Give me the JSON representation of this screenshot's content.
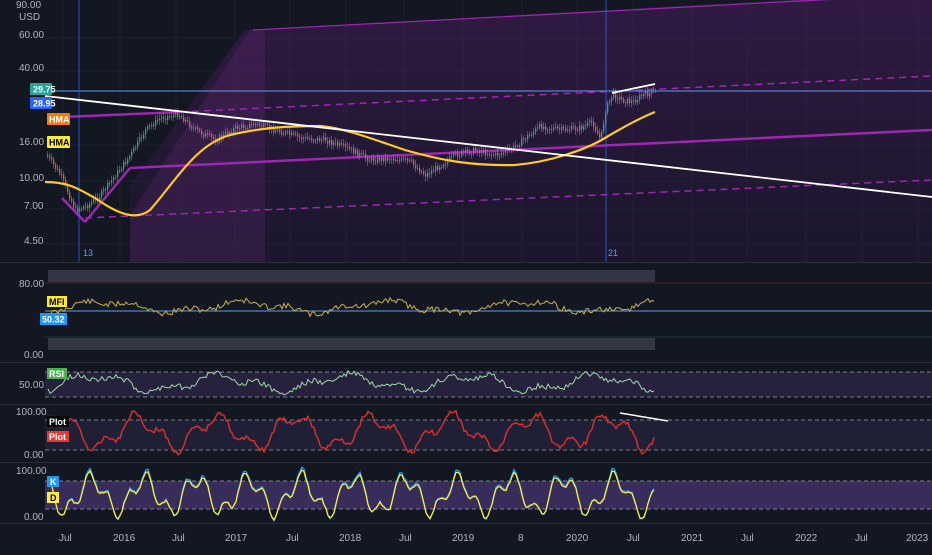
{
  "main_pane": {
    "currency": "USD",
    "y_ticks": [
      "90.00",
      "60.00",
      "40.00",
      "16.00",
      "10.00",
      "7.00",
      "4.50"
    ],
    "price_badges": [
      {
        "label": "29.75",
        "color": "#26a69a"
      },
      {
        "label": "28.95",
        "color": "#2962ff"
      }
    ],
    "indicator_badges": [
      {
        "label": "HMA",
        "color": "#f57c00"
      },
      {
        "label": "HMA",
        "color": "#ffeb3b"
      }
    ],
    "vertical_marker_labels": [
      "13",
      "21"
    ]
  },
  "mfi_pane": {
    "y_ticks": [
      "80.00",
      "0.00"
    ],
    "label": "MFI",
    "value_badge": "50.32"
  },
  "rsi_pane": {
    "y_ticks": [
      "50.00"
    ],
    "label": "RSI"
  },
  "plot_pane": {
    "y_ticks": [
      "100.00",
      "0.00"
    ],
    "labels": [
      {
        "text": "Plot",
        "color": "#000000"
      },
      {
        "text": "Plot",
        "color": "#e53935"
      }
    ]
  },
  "stoch_pane": {
    "y_ticks": [
      "100.00",
      "0.00"
    ],
    "labels": [
      {
        "text": "K",
        "color": "#2196f3"
      },
      {
        "text": "D",
        "color": "#ffeb3b"
      }
    ]
  },
  "x_axis": {
    "ticks": [
      "Jul",
      "2016",
      "Jul",
      "2017",
      "Jul",
      "2018",
      "Jul",
      "2019",
      "8",
      "2020",
      "Jul",
      "2021",
      "Jul",
      "2022",
      "Jul",
      "2023"
    ]
  },
  "colors": {
    "background": "#131722",
    "up": "#26a69a",
    "down": "#ef5350",
    "hma_yellow": "#ffca28",
    "channel_purple": "#9c27b0",
    "trend_white": "#ffffff",
    "marker_blue": "#2962ff",
    "mfi_line": "#c9b04a",
    "rsi_line": "#9fd7a5",
    "plot_red": "#d32f2f",
    "k_line": "#2196f3",
    "d_line": "#ffeb3b"
  }
}
